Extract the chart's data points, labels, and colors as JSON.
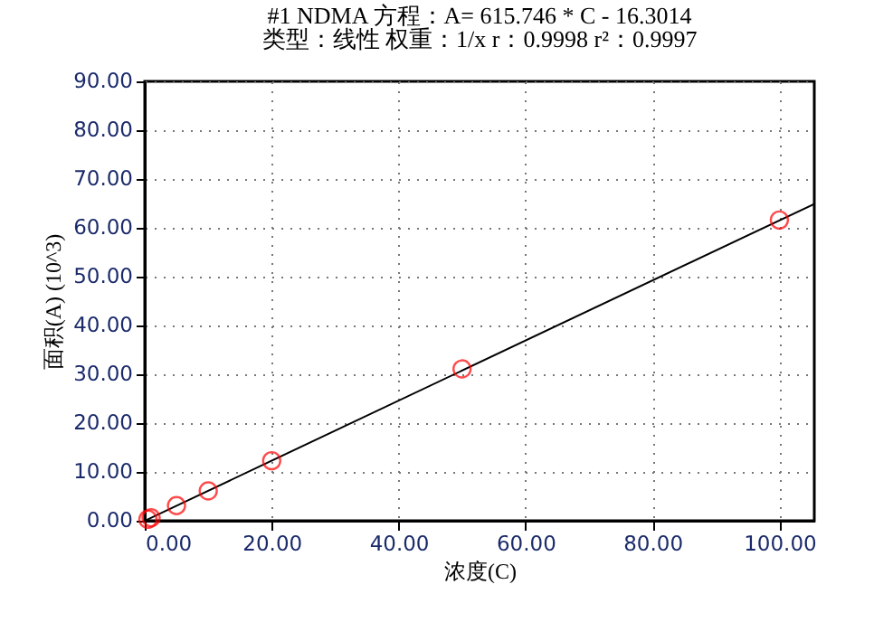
{
  "chart_data": {
    "type": "scatter",
    "title": "#1   NDMA   方程：A= 615.746 * C - 16.3014",
    "subtitle": "类型：线性   权重：1/x   r：0.9998 r²：0.9997",
    "xlabel": "浓度(C)",
    "ylabel": "面积(A) (10^3)",
    "xlim": [
      0,
      105.5
    ],
    "ylim": [
      0,
      90
    ],
    "xticks": [
      {
        "value": 0,
        "label": "0.00"
      },
      {
        "value": 20,
        "label": "20.00"
      },
      {
        "value": 40,
        "label": "40.00"
      },
      {
        "value": 60,
        "label": "60.00"
      },
      {
        "value": 80,
        "label": "80.00"
      },
      {
        "value": 100,
        "label": "100.00"
      }
    ],
    "yticks": [
      {
        "value": 0,
        "label": "0.00"
      },
      {
        "value": 10,
        "label": "10.00"
      },
      {
        "value": 20,
        "label": "20.00"
      },
      {
        "value": 30,
        "label": "30.00"
      },
      {
        "value": 40,
        "label": "40.00"
      },
      {
        "value": 50,
        "label": "50.00"
      },
      {
        "value": 60,
        "label": "60.00"
      },
      {
        "value": 70,
        "label": "70.00"
      },
      {
        "value": 80,
        "label": "80.00"
      },
      {
        "value": 90,
        "label": "90.00"
      }
    ],
    "grid": true,
    "series": [
      {
        "type": "line",
        "marker": "none",
        "color": "#000000",
        "x": [
          0,
          105.5
        ],
        "values": [
          0,
          64.9
        ]
      },
      {
        "marker": "circle",
        "color": "#ff0000",
        "x": [
          0.5,
          1,
          5,
          10,
          20,
          50,
          100
        ],
        "values": [
          0.3,
          0.6,
          3.1,
          6.1,
          12.3,
          31.1,
          61.6
        ]
      }
    ]
  }
}
